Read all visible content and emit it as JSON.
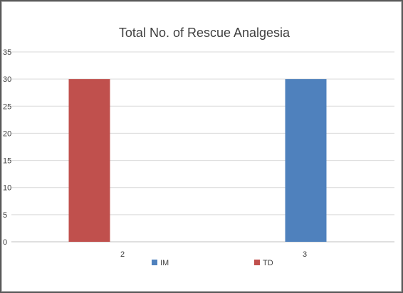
{
  "chart_data": {
    "type": "bar",
    "title": "Total No. of Rescue Analgesia",
    "categories": [
      "2",
      "3"
    ],
    "series": [
      {
        "name": "IM",
        "values": [
          null,
          30
        ],
        "color": "#4f81bd"
      },
      {
        "name": "TD",
        "values": [
          30,
          null
        ],
        "color": "#c0504d"
      }
    ],
    "ylim": [
      0,
      35
    ],
    "yticks": [
      0,
      5,
      10,
      15,
      20,
      25,
      30,
      35
    ],
    "grid": true,
    "legend_position": "bottom"
  }
}
